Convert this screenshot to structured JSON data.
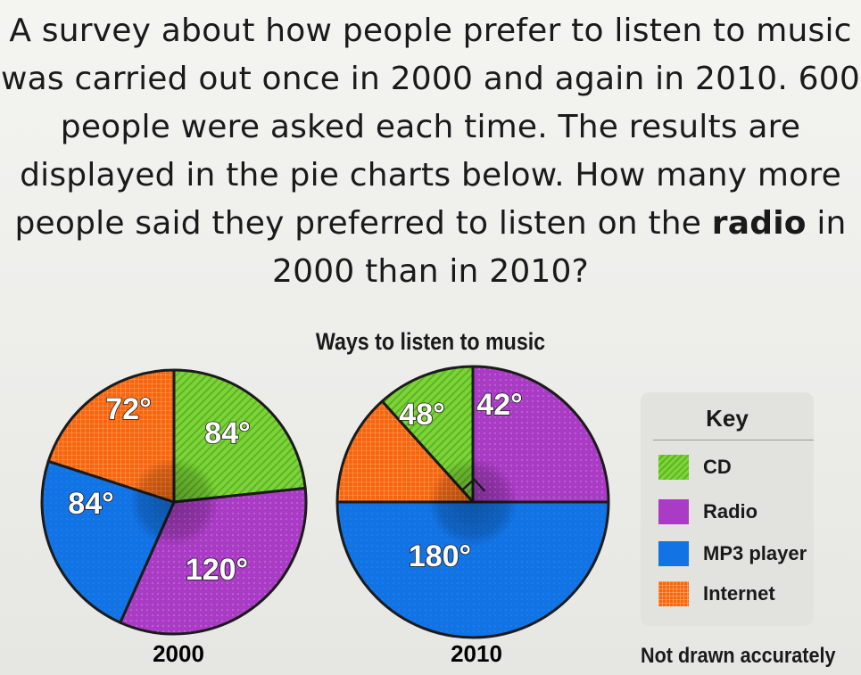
{
  "question": {
    "before": "A survey about how people prefer to listen to music was carried out once in 2000 and again in 2010. 600 people were asked each time. The results are displayed in the pie charts below. How many more people said they preferred to listen on the ",
    "bold": "radio",
    "after": " in 2000 than in 2010?"
  },
  "note": "Not drawn accurately",
  "key": {
    "title": "Key",
    "items": [
      {
        "label": "CD"
      },
      {
        "label": "Radio"
      },
      {
        "label": "MP3 player"
      },
      {
        "label": "Internet"
      }
    ]
  },
  "colors": {
    "CD": "#76cc34",
    "Radio": "#a93bc4",
    "MP3 player": "#1273e4",
    "Internet": "#f7660e"
  },
  "chart_data": [
    {
      "type": "pie",
      "title": "Ways to listen to music",
      "xlabel": "2000",
      "categories": [
        "CD",
        "Radio",
        "MP3 player",
        "Internet"
      ],
      "values": [
        84,
        120,
        84,
        72
      ],
      "labels": [
        "84°",
        "120°",
        "84°",
        "72°"
      ]
    },
    {
      "type": "pie",
      "title": "Ways to listen to music",
      "xlabel": "2010",
      "categories": [
        "CD",
        "Radio",
        "MP3 player",
        "Internet"
      ],
      "values": [
        42,
        90,
        180,
        48
      ],
      "labels": [
        "42°",
        "",
        "180°",
        "48°"
      ]
    }
  ]
}
